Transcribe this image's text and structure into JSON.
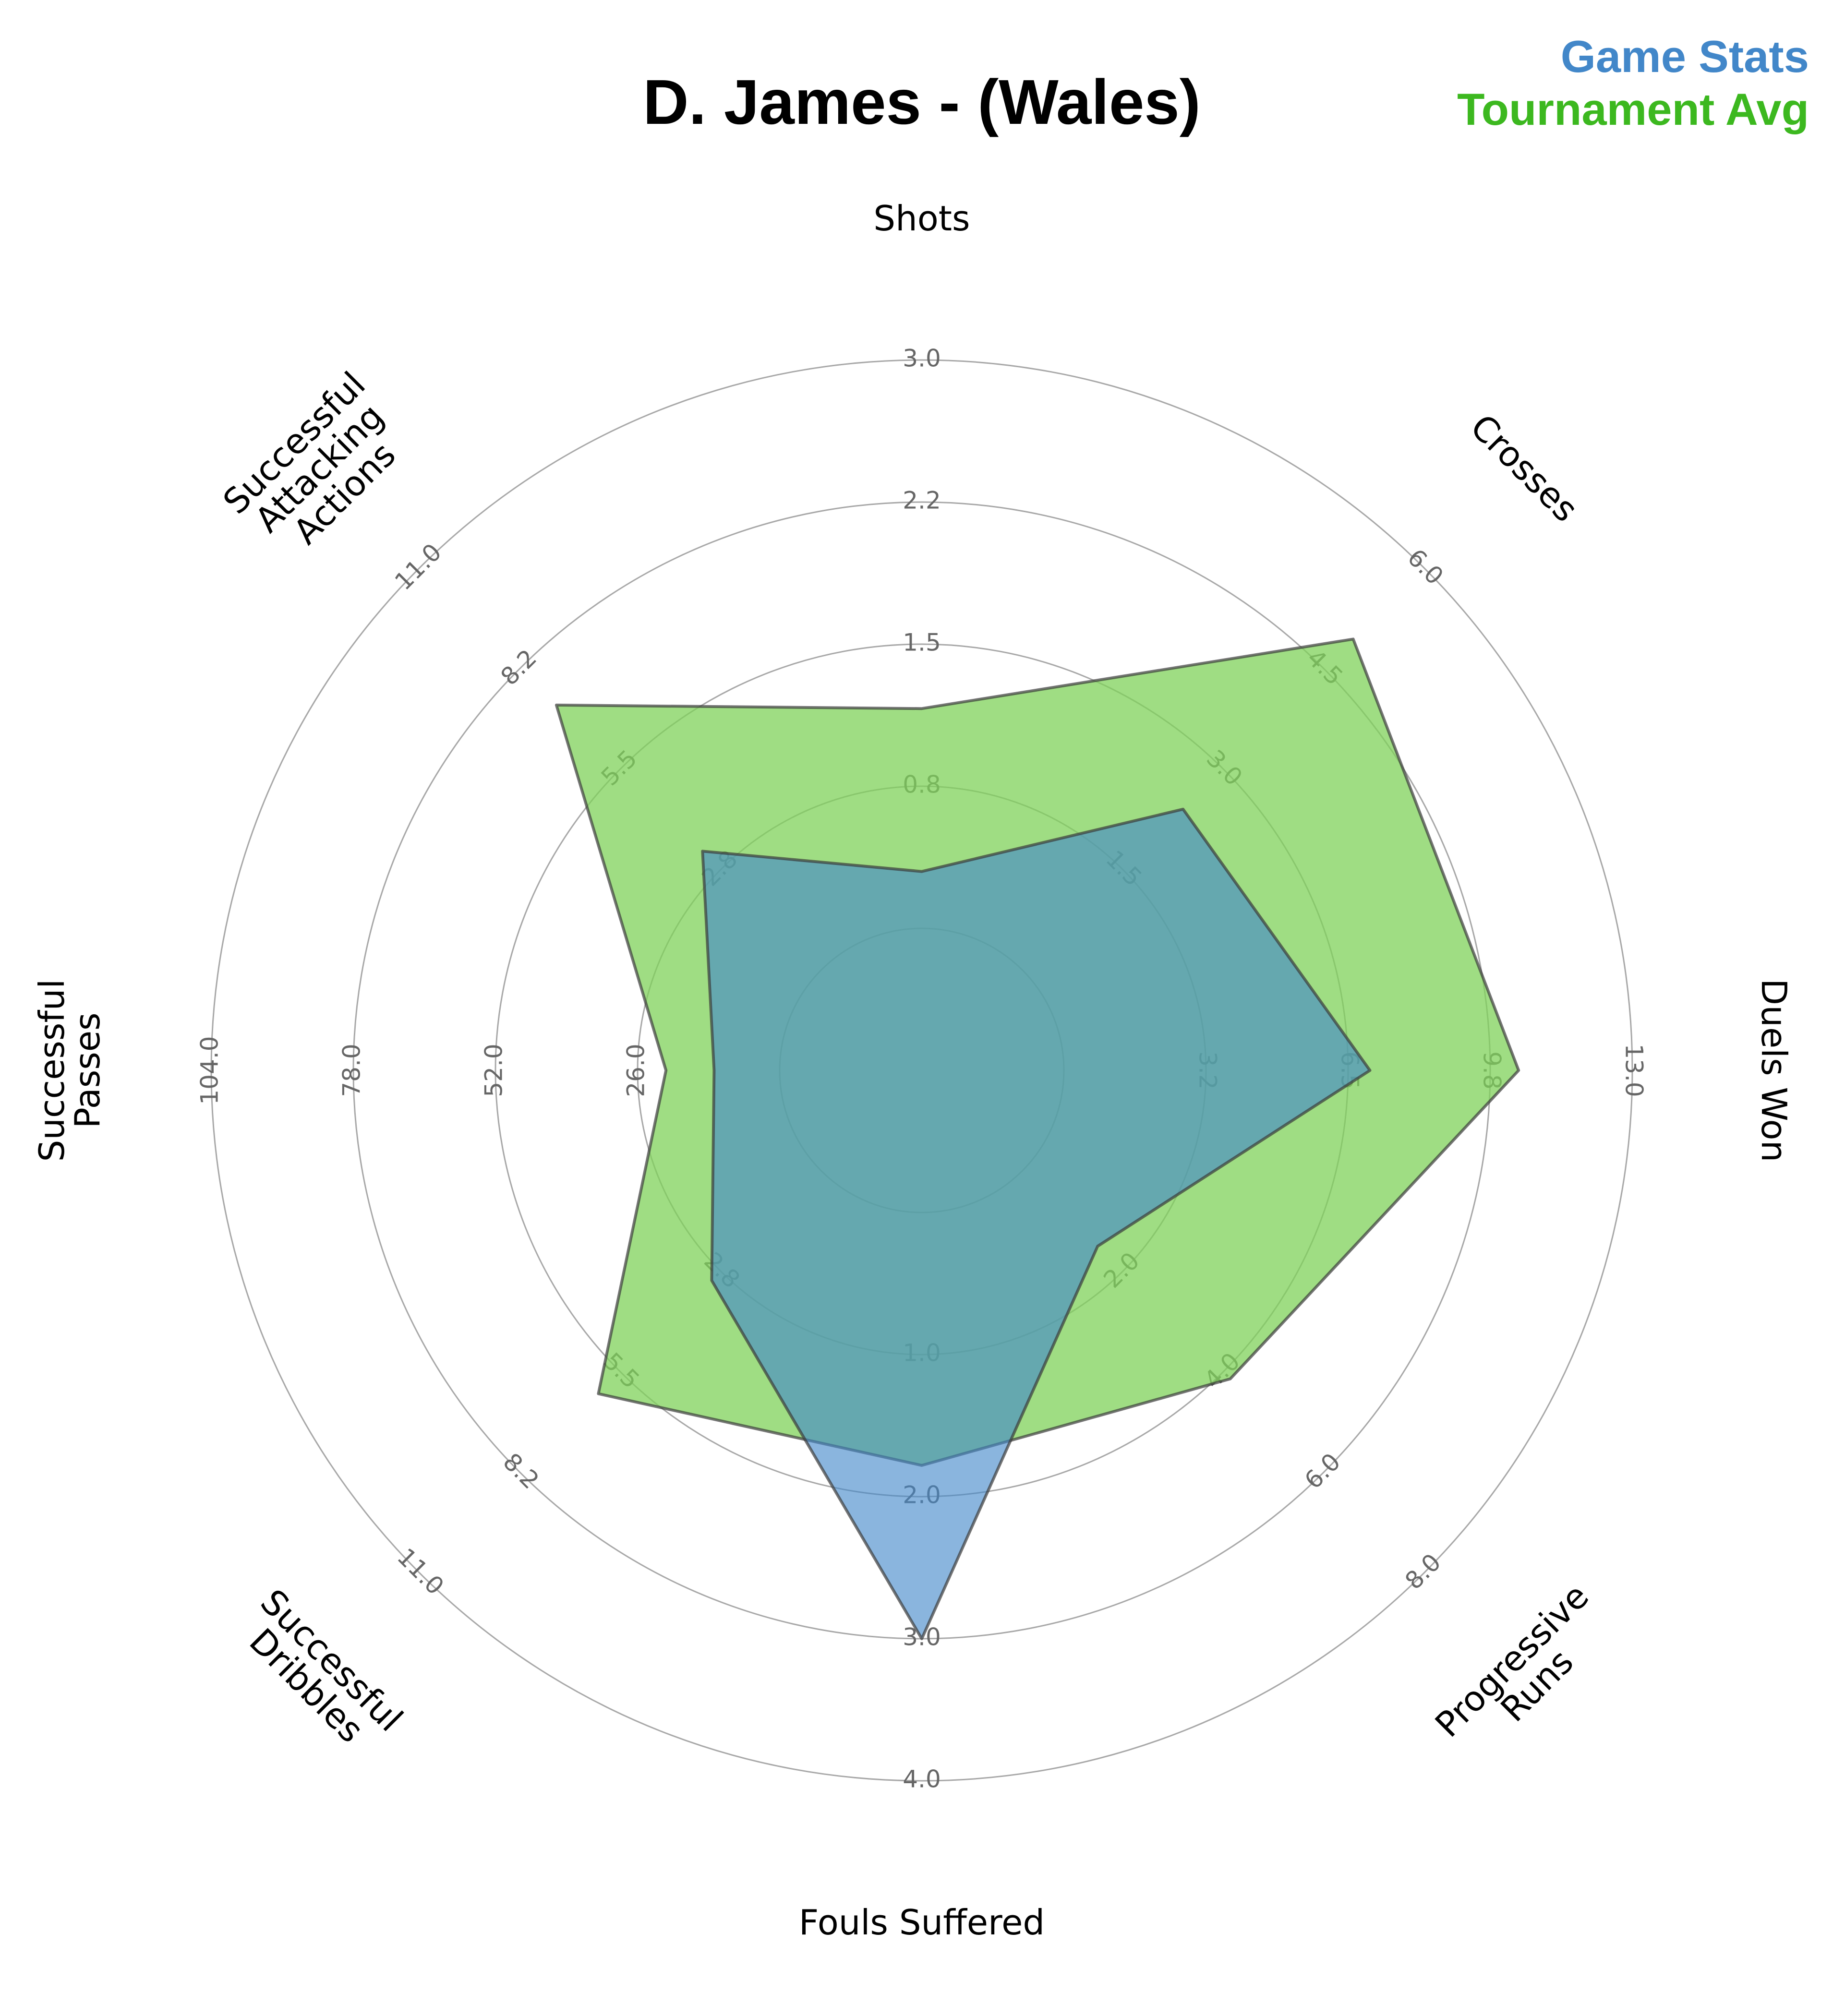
{
  "title": "D. James - (Wales)",
  "legend": [
    {
      "label": "Game Stats",
      "color": "#4287c9"
    },
    {
      "label": "Tournament Avg",
      "color": "#3cb81f"
    }
  ],
  "chart_data": {
    "type": "radar",
    "title": "D. James - (Wales)",
    "axes": [
      {
        "label": [
          "Shots"
        ],
        "max": 3.0,
        "ticks": [
          "0.8",
          "1.5",
          "2.2",
          "3.0"
        ]
      },
      {
        "label": [
          "Crosses"
        ],
        "max": 6.0,
        "ticks": [
          "1.5",
          "3.0",
          "4.5",
          "6.0"
        ]
      },
      {
        "label": [
          "Duels Won"
        ],
        "max": 13.0,
        "ticks": [
          "3.2",
          "6.5",
          "9.8",
          "13.0"
        ]
      },
      {
        "label": [
          "Progressive",
          "Runs"
        ],
        "max": 8.0,
        "ticks": [
          "2.0",
          "4.0",
          "6.0",
          "8.0"
        ]
      },
      {
        "label": [
          "Fouls Suffered"
        ],
        "max": 4.0,
        "ticks": [
          "1.0",
          "2.0",
          "3.0",
          "4.0"
        ]
      },
      {
        "label": [
          "Successful",
          "Dribbles"
        ],
        "max": 11.0,
        "ticks": [
          "2.8",
          "5.5",
          "8.2",
          "11.0"
        ]
      },
      {
        "label": [
          "Successful",
          "Passes"
        ],
        "max": 104.0,
        "ticks": [
          "26.0",
          "52.0",
          "78.0",
          "104.0"
        ]
      },
      {
        "label": [
          "Successful",
          "Attacking",
          "Actions"
        ],
        "max": 11.0,
        "ticks": [
          "2.8",
          "5.5",
          "8.2",
          "11.0"
        ]
      }
    ],
    "series": [
      {
        "name": "Tournament Avg",
        "color": "#7fd15a",
        "opacity": 0.75,
        "values": [
          1.16,
          4.94,
          10.4,
          4.14,
          1.78,
          6.1,
          20.8,
          7.25
        ]
      },
      {
        "name": "Game Stats",
        "color": "#4287c9",
        "opacity": 0.62,
        "values": [
          0.3,
          2.4,
          7.0,
          1.5,
          3.0,
          3.0,
          12.0,
          3.25
        ]
      }
    ]
  }
}
